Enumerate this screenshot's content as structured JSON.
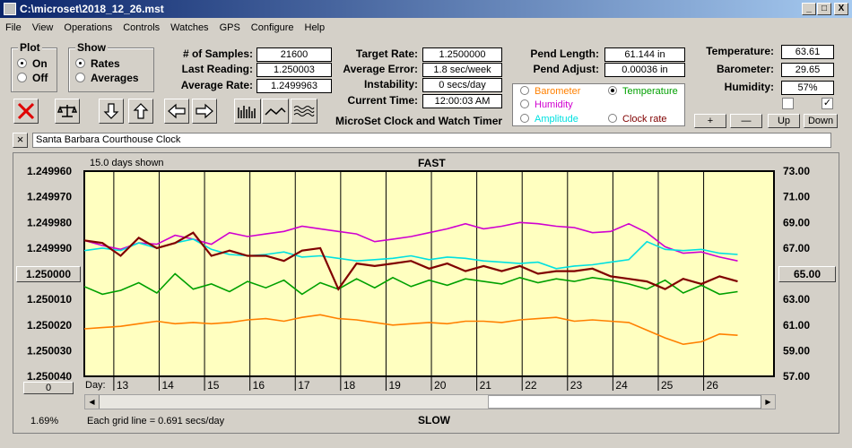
{
  "window": {
    "title": "C:\\microset\\2018_12_26.mst",
    "minimize": "_",
    "maximize": "□",
    "close": "X"
  },
  "menu": [
    "File",
    "View",
    "Operations",
    "Controls",
    "Watches",
    "GPS",
    "Configure",
    "Help"
  ],
  "plot": {
    "title": "Plot",
    "on": "On",
    "off": "Off",
    "selected": "On"
  },
  "show": {
    "title": "Show",
    "rates": "Rates",
    "averages": "Averages",
    "selected": "Rates"
  },
  "stats": {
    "samples_label": "# of Samples:",
    "samples": "21600",
    "last_label": "Last Reading:",
    "last": "1.250003",
    "avg_label": "Average Rate:",
    "avg": "1.2499963",
    "target_label": "Target Rate:",
    "target": "1.2500000",
    "avgerr_label": "Average Error:",
    "avgerr": "1.8 sec/week",
    "instab_label": "Instability:",
    "instab": "0 secs/day",
    "time_label": "Current Time:",
    "time": "12:00:03 AM",
    "pendlen_label": "Pend Length:",
    "pendlen": "61.144 in",
    "pendadj_label": "Pend Adjust:",
    "pendadj": "0.00036 in",
    "temp_label": "Temperature:",
    "temp": "63.61",
    "baro_label": "Barometer:",
    "baro": "29.65",
    "hum_label": "Humidity:",
    "hum": "57%"
  },
  "product_title": "MicroSet Clock and Watch Timer",
  "series_select": {
    "barometer": "Barometer",
    "temperature": "Temperature",
    "humidity": "Humidity",
    "amplitude": "Amplitude",
    "clockrate": "Clock rate",
    "selected": "Temperature"
  },
  "adjust_buttons": {
    "plus": "+",
    "minus": "—",
    "up": "Up",
    "down": "Down"
  },
  "checkboxes": {
    "left": false,
    "right": true,
    "check_mark": "✓"
  },
  "clock_name": "Santa Barbara Courthouse Clock",
  "clear_name": "×",
  "colors": {
    "barometer": "#ff8000",
    "temperature": "#00a000",
    "humidity": "#d000d0",
    "amplitude": "#00e0e0",
    "clockrate": "#800000",
    "plot_bg": "#ffffc0"
  },
  "chart_header": {
    "days_shown": "15.0 days shown",
    "fast": "FAST",
    "slow": "SLOW",
    "grid_note": "Each grid line = 0.691 secs/day",
    "percent": "1.69%",
    "left_button": "1.250000",
    "right_button": "65.00",
    "zero_button": "0",
    "day_label": "Day:"
  },
  "chart_data": {
    "type": "line",
    "x_label": "Day",
    "x": [
      12.2,
      12.6,
      13.0,
      13.4,
      13.8,
      14.2,
      14.6,
      15.0,
      15.4,
      15.8,
      16.2,
      16.6,
      17.0,
      17.4,
      17.8,
      18.2,
      18.6,
      19.0,
      19.4,
      19.8,
      20.2,
      20.6,
      21.0,
      21.4,
      21.8,
      22.2,
      22.6,
      23.0,
      23.4,
      23.8,
      24.2,
      24.6,
      25.0,
      25.4,
      25.8,
      26.2,
      26.6
    ],
    "y_left": {
      "ticks": [
        "1.249960",
        "1.249970",
        "1.249980",
        "1.249990",
        "1.250000",
        "1.250010",
        "1.250020",
        "1.250030",
        "1.250040"
      ],
      "ylim": [
        1.24996,
        1.25004
      ],
      "inverted": true
    },
    "y_right": {
      "ticks": [
        "73.00",
        "71.00",
        "69.00",
        "67.00",
        "65.00",
        "63.00",
        "61.00",
        "59.00",
        "57.00"
      ],
      "ylim": [
        57,
        73
      ]
    },
    "x_ticks": [
      "13",
      "14",
      "15",
      "16",
      "17",
      "18",
      "19",
      "20",
      "21",
      "22",
      "23",
      "24",
      "25",
      "26"
    ],
    "series": [
      {
        "name": "Clock rate",
        "color": "#800000",
        "axis": "left",
        "values": [
          1.249987,
          1.249988,
          1.249993,
          1.249986,
          1.24999,
          1.249988,
          1.249984,
          1.249993,
          1.249991,
          1.249993,
          1.249993,
          1.249995,
          1.249991,
          1.24999,
          1.250006,
          1.249996,
          1.249997,
          1.249996,
          1.249995,
          1.249998,
          1.249996,
          1.249999,
          1.249997,
          1.249999,
          1.249997,
          1.25,
          1.249999,
          1.249999,
          1.249998,
          1.250001,
          1.250002,
          1.250003,
          1.250006,
          1.250002,
          1.250004,
          1.250001,
          1.250003
        ]
      },
      {
        "name": "Temperature",
        "color": "#00a000",
        "axis": "right",
        "values": [
          64.0,
          63.4,
          63.7,
          64.3,
          63.5,
          65.0,
          63.8,
          64.2,
          63.6,
          64.4,
          63.9,
          64.5,
          63.4,
          64.3,
          63.8,
          64.6,
          63.9,
          64.7,
          64.0,
          64.5,
          64.1,
          64.6,
          64.4,
          64.2,
          64.7,
          64.3,
          64.6,
          64.4,
          64.7,
          64.5,
          64.2,
          63.8,
          64.5,
          63.5,
          64.1,
          63.4,
          63.6
        ]
      },
      {
        "name": "Humidity",
        "color": "#d000d0",
        "axis": "right",
        "values": [
          67.6,
          67.2,
          66.9,
          67.4,
          67.3,
          68.0,
          67.7,
          67.3,
          68.2,
          67.9,
          68.1,
          68.3,
          68.7,
          68.5,
          68.3,
          68.1,
          67.5,
          67.7,
          67.9,
          68.2,
          68.5,
          68.9,
          68.5,
          68.7,
          69.0,
          68.9,
          68.7,
          68.6,
          68.2,
          68.3,
          68.9,
          68.2,
          67.1,
          66.6,
          66.7,
          66.3,
          66.0
        ]
      },
      {
        "name": "Amplitude",
        "color": "#00e0e0",
        "axis": "right",
        "values": [
          66.8,
          67.0,
          66.8,
          67.4,
          67.0,
          67.4,
          67.7,
          66.9,
          66.5,
          66.4,
          66.5,
          66.7,
          66.3,
          66.4,
          66.2,
          66.0,
          66.1,
          66.2,
          66.4,
          66.1,
          66.3,
          66.2,
          66.0,
          65.9,
          65.8,
          65.9,
          65.4,
          65.6,
          65.7,
          65.9,
          66.1,
          67.5,
          66.9,
          66.8,
          66.9,
          66.6,
          66.5
        ]
      },
      {
        "name": "Barometer",
        "color": "#ff8000",
        "axis": "right",
        "values": [
          60.7,
          60.8,
          60.9,
          61.1,
          61.3,
          61.1,
          61.2,
          61.1,
          61.2,
          61.4,
          61.5,
          61.3,
          61.6,
          61.8,
          61.5,
          61.4,
          61.2,
          61.0,
          61.1,
          61.2,
          61.1,
          61.3,
          61.3,
          61.2,
          61.4,
          61.5,
          61.6,
          61.3,
          61.4,
          61.3,
          61.2,
          60.6,
          60.0,
          59.5,
          59.7,
          60.3,
          60.2
        ]
      }
    ]
  }
}
